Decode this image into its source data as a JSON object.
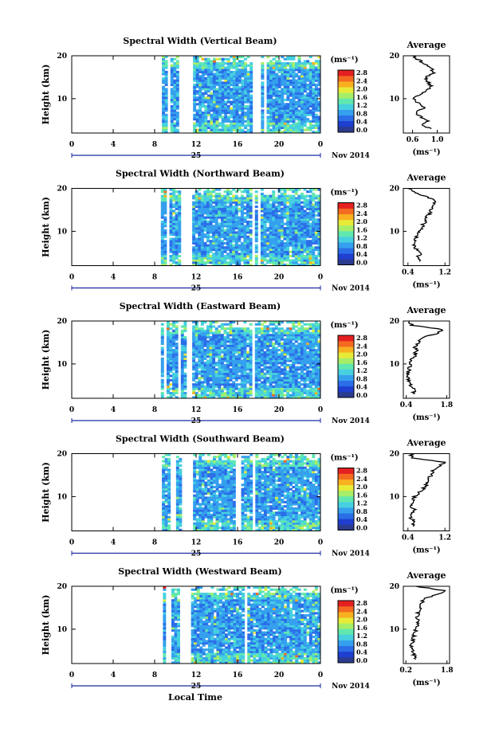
{
  "footer": {
    "xlabel": "Local Time"
  },
  "colorbar": {
    "unit": "(ms⁻¹)",
    "ticks": [
      "2.8",
      "2.4",
      "2.0",
      "1.6",
      "1.2",
      "0.8",
      "0.4",
      "0.0"
    ],
    "colors": [
      "#2b3b8f",
      "#1f3fd0",
      "#2b6ee8",
      "#35a0ee",
      "#46d0e0",
      "#60e8b0",
      "#a6ee68",
      "#e8ea38",
      "#f8b020",
      "#f46a20",
      "#e42020"
    ]
  },
  "chart_data": [
    {
      "type": "heatmap",
      "title": "Spectral Width (Vertical Beam)",
      "ylabel": "Height (km)",
      "yticks": [
        "10",
        "20"
      ],
      "ylim": [
        2,
        20
      ],
      "xticks": [
        "0",
        "4",
        "8",
        "12",
        "16",
        "20",
        "0"
      ],
      "xlim": [
        0,
        24
      ],
      "date_day": "25",
      "date_month_year": "Nov 2014",
      "z_range": [
        0.0,
        3.0
      ],
      "data_start_hour": 8.7,
      "gaps_hours": [
        [
          9.2,
          9.4
        ],
        [
          10.3,
          11.6
        ],
        [
          17.5,
          18.3
        ],
        [
          18.6,
          18.9
        ]
      ],
      "profile": {
        "title": "Average",
        "xticks": [
          "0.6",
          "1.0"
        ],
        "xlim": [
          0.45,
          1.2
        ],
        "unit": "(ms⁻¹)",
        "heights_km": [
          3,
          4,
          5,
          6,
          7,
          8,
          9,
          10,
          11,
          12,
          13,
          14,
          15,
          16,
          17,
          18,
          19,
          20
        ],
        "values": [
          0.9,
          0.75,
          0.85,
          0.7,
          0.65,
          0.8,
          0.7,
          0.6,
          0.75,
          0.85,
          0.9,
          0.85,
          0.8,
          0.95,
          0.9,
          0.8,
          0.7,
          0.6
        ]
      }
    },
    {
      "type": "heatmap",
      "title": "Spectral Width (Northward Beam)",
      "ylabel": "Height (km)",
      "yticks": [
        "10",
        "20"
      ],
      "ylim": [
        2,
        20
      ],
      "xticks": [
        "0",
        "4",
        "8",
        "12",
        "16",
        "20",
        "0"
      ],
      "xlim": [
        0,
        24
      ],
      "date_day": "25",
      "date_month_year": "Nov 2014",
      "z_range": [
        0.0,
        3.0
      ],
      "data_start_hour": 8.6,
      "gaps_hours": [
        [
          9.1,
          9.3
        ],
        [
          10.6,
          11.5
        ],
        [
          17.3,
          17.7
        ],
        [
          18.0,
          18.3
        ]
      ],
      "profile": {
        "title": "Average",
        "xticks": [
          "0.4",
          "1.2"
        ],
        "xlim": [
          0.3,
          1.3
        ],
        "unit": "(ms⁻¹)",
        "heights_km": [
          3,
          4,
          5,
          6,
          7,
          8,
          9,
          10,
          11,
          12,
          13,
          14,
          15,
          16,
          17,
          18,
          19,
          20
        ],
        "values": [
          0.65,
          0.6,
          0.7,
          0.55,
          0.5,
          0.55,
          0.6,
          0.65,
          0.7,
          0.75,
          0.8,
          0.85,
          0.9,
          0.95,
          1.0,
          0.8,
          0.55,
          0.4
        ]
      }
    },
    {
      "type": "heatmap",
      "title": "Spectral Width (Eastward Beam)",
      "ylabel": "Height (km)",
      "yticks": [
        "10",
        "20"
      ],
      "ylim": [
        2,
        20
      ],
      "xticks": [
        "0",
        "4",
        "8",
        "12",
        "16",
        "20",
        "0"
      ],
      "xlim": [
        0,
        24
      ],
      "date_day": "25",
      "date_month_year": "Nov 2014",
      "z_range": [
        0.0,
        3.0
      ],
      "data_start_hour": 8.6,
      "gaps_hours": [
        [
          9.0,
          9.2
        ],
        [
          10.3,
          10.6
        ],
        [
          11.0,
          11.5
        ],
        [
          17.4,
          17.7
        ]
      ],
      "profile": {
        "title": "Average",
        "xticks": [
          "0.4",
          "1.8"
        ],
        "xlim": [
          0.3,
          1.9
        ],
        "unit": "(ms⁻¹)",
        "heights_km": [
          3,
          4,
          5,
          6,
          7,
          8,
          9,
          10,
          11,
          12,
          13,
          14,
          15,
          16,
          17,
          18,
          19,
          20
        ],
        "values": [
          0.6,
          0.7,
          0.55,
          0.5,
          0.45,
          0.45,
          0.5,
          0.55,
          0.6,
          0.7,
          0.75,
          0.7,
          0.8,
          0.9,
          1.4,
          1.7,
          0.6,
          0.5
        ]
      }
    },
    {
      "type": "heatmap",
      "title": "Spectral Width (Southward Beam)",
      "ylabel": "Height (km)",
      "yticks": [
        "10",
        "20"
      ],
      "ylim": [
        2,
        20
      ],
      "xticks": [
        "0",
        "4",
        "8",
        "12",
        "16",
        "20",
        "0"
      ],
      "xlim": [
        0,
        24
      ],
      "date_day": "25",
      "date_month_year": "Nov 2014",
      "z_range": [
        0.0,
        3.0
      ],
      "data_start_hour": 8.7,
      "gaps_hours": [
        [
          9.6,
          10.0
        ],
        [
          10.6,
          11.6
        ],
        [
          15.9,
          16.3
        ],
        [
          17.4,
          17.7
        ]
      ],
      "profile": {
        "title": "Average",
        "xticks": [
          "0.4",
          "1.2"
        ],
        "xlim": [
          0.3,
          1.3
        ],
        "unit": "(ms⁻¹)",
        "heights_km": [
          3,
          4,
          5,
          6,
          7,
          8,
          9,
          10,
          11,
          12,
          13,
          14,
          15,
          16,
          17,
          18,
          19,
          20
        ],
        "values": [
          0.5,
          0.55,
          0.45,
          0.5,
          0.55,
          0.45,
          0.5,
          0.55,
          0.65,
          0.75,
          0.8,
          0.85,
          0.9,
          0.95,
          1.05,
          1.2,
          0.5,
          0.45
        ]
      }
    },
    {
      "type": "heatmap",
      "title": "Spectral Width (Westward Beam)",
      "ylabel": "Height (km)",
      "yticks": [
        "10",
        "20"
      ],
      "ylim": [
        2,
        20
      ],
      "xticks": [
        "0",
        "4",
        "8",
        "12",
        "16",
        "20",
        "0"
      ],
      "xlim": [
        0,
        24
      ],
      "date_day": "25",
      "date_month_year": "Nov 2014",
      "z_range": [
        0.0,
        3.0
      ],
      "data_start_hour": 8.8,
      "gaps_hours": [
        [
          9.2,
          9.5
        ],
        [
          10.5,
          11.6
        ],
        [
          16.7,
          17.0
        ],
        [
          17.4,
          17.6
        ]
      ],
      "profile": {
        "title": "Average",
        "xticks": [
          "0.2",
          "1.8"
        ],
        "xlim": [
          0.1,
          1.9
        ],
        "unit": "(ms⁻¹)",
        "heights_km": [
          3,
          4,
          5,
          6,
          7,
          8,
          9,
          10,
          11,
          12,
          13,
          14,
          15,
          16,
          17,
          18,
          19,
          20
        ],
        "values": [
          0.6,
          0.5,
          0.45,
          0.4,
          0.45,
          0.5,
          0.55,
          0.6,
          0.65,
          0.7,
          0.65,
          0.7,
          0.75,
          0.8,
          0.9,
          1.4,
          1.7,
          0.6
        ]
      }
    }
  ]
}
